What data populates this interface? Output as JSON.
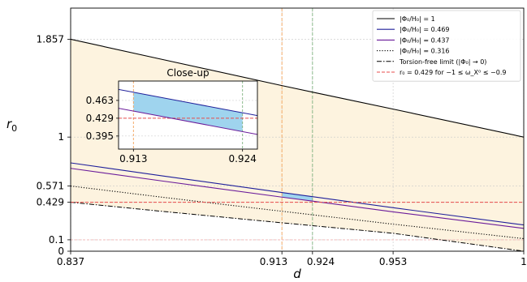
{
  "chart_data": {
    "type": "line",
    "xlabel": "d",
    "ylabel": "r",
    "ylabel_sub": "0",
    "xlim": [
      0.837,
      1.0
    ],
    "ylim": [
      0.0,
      2.13
    ],
    "xticks": [
      0.837,
      0.913,
      0.924,
      0.953,
      1.0
    ],
    "xtick_labels": [
      "0.837",
      "0.913",
      "0.924",
      "0.953",
      "1"
    ],
    "yticks": [
      0.0,
      0.1,
      0.429,
      0.571,
      1.0,
      1.857
    ],
    "ytick_labels": [
      "0",
      "0.1",
      "0.429",
      "0.571",
      "1",
      "1.857"
    ],
    "grid": "dotted",
    "legend_position": "top-right",
    "colors": {
      "fill_band": "#fdf3df",
      "fill_highlight": "#9fd4ee",
      "series_1": "#000000",
      "series_469": "#1f1f9a",
      "series_437": "#6a1b9a",
      "series_316": "#000000",
      "torsion_free": "#000000",
      "r0_line": "#e84c4c",
      "vline_913": "#f2a35a",
      "vline_924": "#7fb27f"
    },
    "series": [
      {
        "key": "s1",
        "name": "|Φ₀/H₀| = 1",
        "style": "solid",
        "x": [
          0.837,
          0.87,
          0.913,
          0.924,
          0.953,
          1.0
        ],
        "y": [
          1.857,
          1.68,
          1.451,
          1.394,
          1.245,
          1.0
        ]
      },
      {
        "key": "s469",
        "name": "|Φ₀/H₀| = 0.469",
        "style": "solid",
        "x": [
          0.837,
          0.87,
          0.913,
          0.924,
          0.953,
          1.0
        ],
        "y": [
          0.774,
          0.66,
          0.514,
          0.478,
          0.381,
          0.23
        ]
      },
      {
        "key": "s437",
        "name": "|Φ₀/H₀| = 0.437",
        "style": "solid",
        "x": [
          0.837,
          0.87,
          0.913,
          0.924,
          0.953,
          1.0
        ],
        "y": [
          0.726,
          0.615,
          0.474,
          0.439,
          0.345,
          0.2
        ]
      },
      {
        "key": "s316",
        "name": "|Φ₀/H₀| = 0.316",
        "style": "dotted",
        "x": [
          0.837,
          0.87,
          0.913,
          0.924,
          0.953,
          1.0
        ],
        "y": [
          0.571,
          0.473,
          0.35,
          0.319,
          0.237,
          0.11
        ]
      },
      {
        "key": "tf",
        "name": "Torsion-free limit (|Φ₀| → 0)",
        "style": "dashdot",
        "x": [
          0.837,
          0.87,
          0.913,
          0.924,
          0.953,
          1.0
        ],
        "y": [
          0.429,
          0.349,
          0.249,
          0.224,
          0.157,
          0.0
        ]
      },
      {
        "key": "r0",
        "name": "r₀ = 0.429 for −1 ≤ ω_X⁰ ≤ −0.9",
        "style": "dashed",
        "x": [
          0.837,
          1.0
        ],
        "y": [
          0.429,
          0.429
        ]
      }
    ],
    "inset": {
      "title": "Close-up",
      "xlim": [
        0.9115,
        0.9255
      ],
      "ylim": [
        0.37,
        0.5
      ],
      "xticks": [
        0.913,
        0.924
      ],
      "xtick_labels": [
        "0.913",
        "0.924"
      ],
      "yticks": [
        0.395,
        0.429,
        0.463
      ],
      "ytick_labels": [
        "0.395",
        "0.429",
        "0.463"
      ],
      "upper": {
        "x": [
          0.9115,
          0.9255
        ],
        "y": [
          0.484,
          0.434
        ]
      },
      "lower": {
        "x": [
          0.9115,
          0.9255
        ],
        "y": [
          0.448,
          0.398
        ]
      }
    }
  }
}
